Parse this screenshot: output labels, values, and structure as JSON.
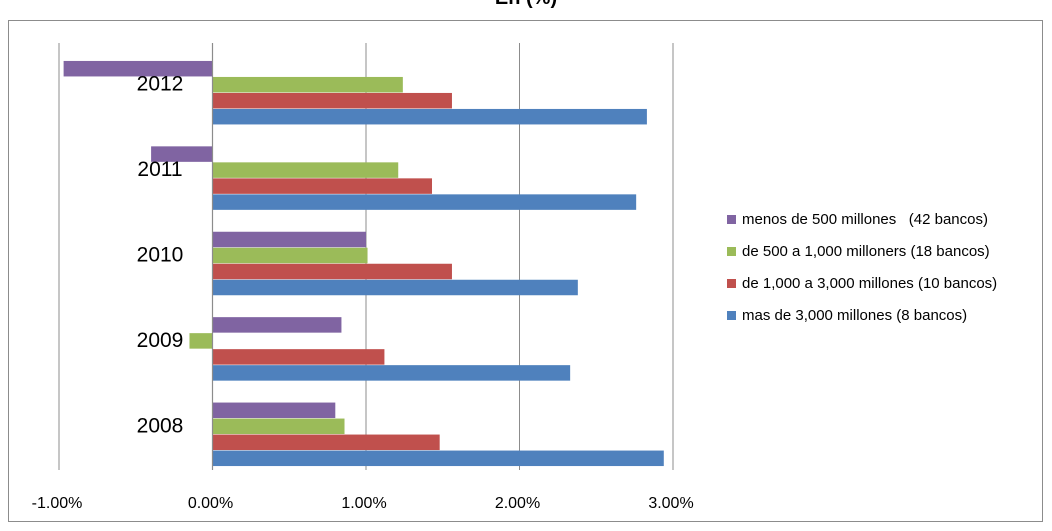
{
  "chart_data": {
    "type": "bar",
    "orientation": "horizontal",
    "title": "En (%)",
    "categories": [
      "2012",
      "2011",
      "2010",
      "2009",
      "2008"
    ],
    "series": [
      {
        "name": "menos de 500 millones   (42 bancos)",
        "color": "#8064a2",
        "values": [
          -0.97,
          -0.4,
          1.0,
          0.84,
          0.8
        ]
      },
      {
        "name": "de 500 a 1,000 milloners (18 bancos)",
        "color": "#9bbb59",
        "values": [
          1.24,
          1.21,
          1.01,
          -0.15,
          0.86
        ]
      },
      {
        "name": "de 1,000 a 3,000 millones (10 bancos)",
        "color": "#c0504d",
        "values": [
          1.56,
          1.43,
          1.56,
          1.12,
          1.48
        ]
      },
      {
        "name": "mas de 3,000 millones (8 bancos)",
        "color": "#4f81bd",
        "values": [
          2.83,
          2.76,
          2.38,
          2.33,
          2.94
        ]
      }
    ],
    "x_ticks": [
      "-1.00%",
      "0.00%",
      "1.00%",
      "2.00%",
      "3.00%"
    ],
    "xlim": [
      -1.0,
      3.0
    ],
    "grid": "vertical",
    "legend_position": "right"
  }
}
